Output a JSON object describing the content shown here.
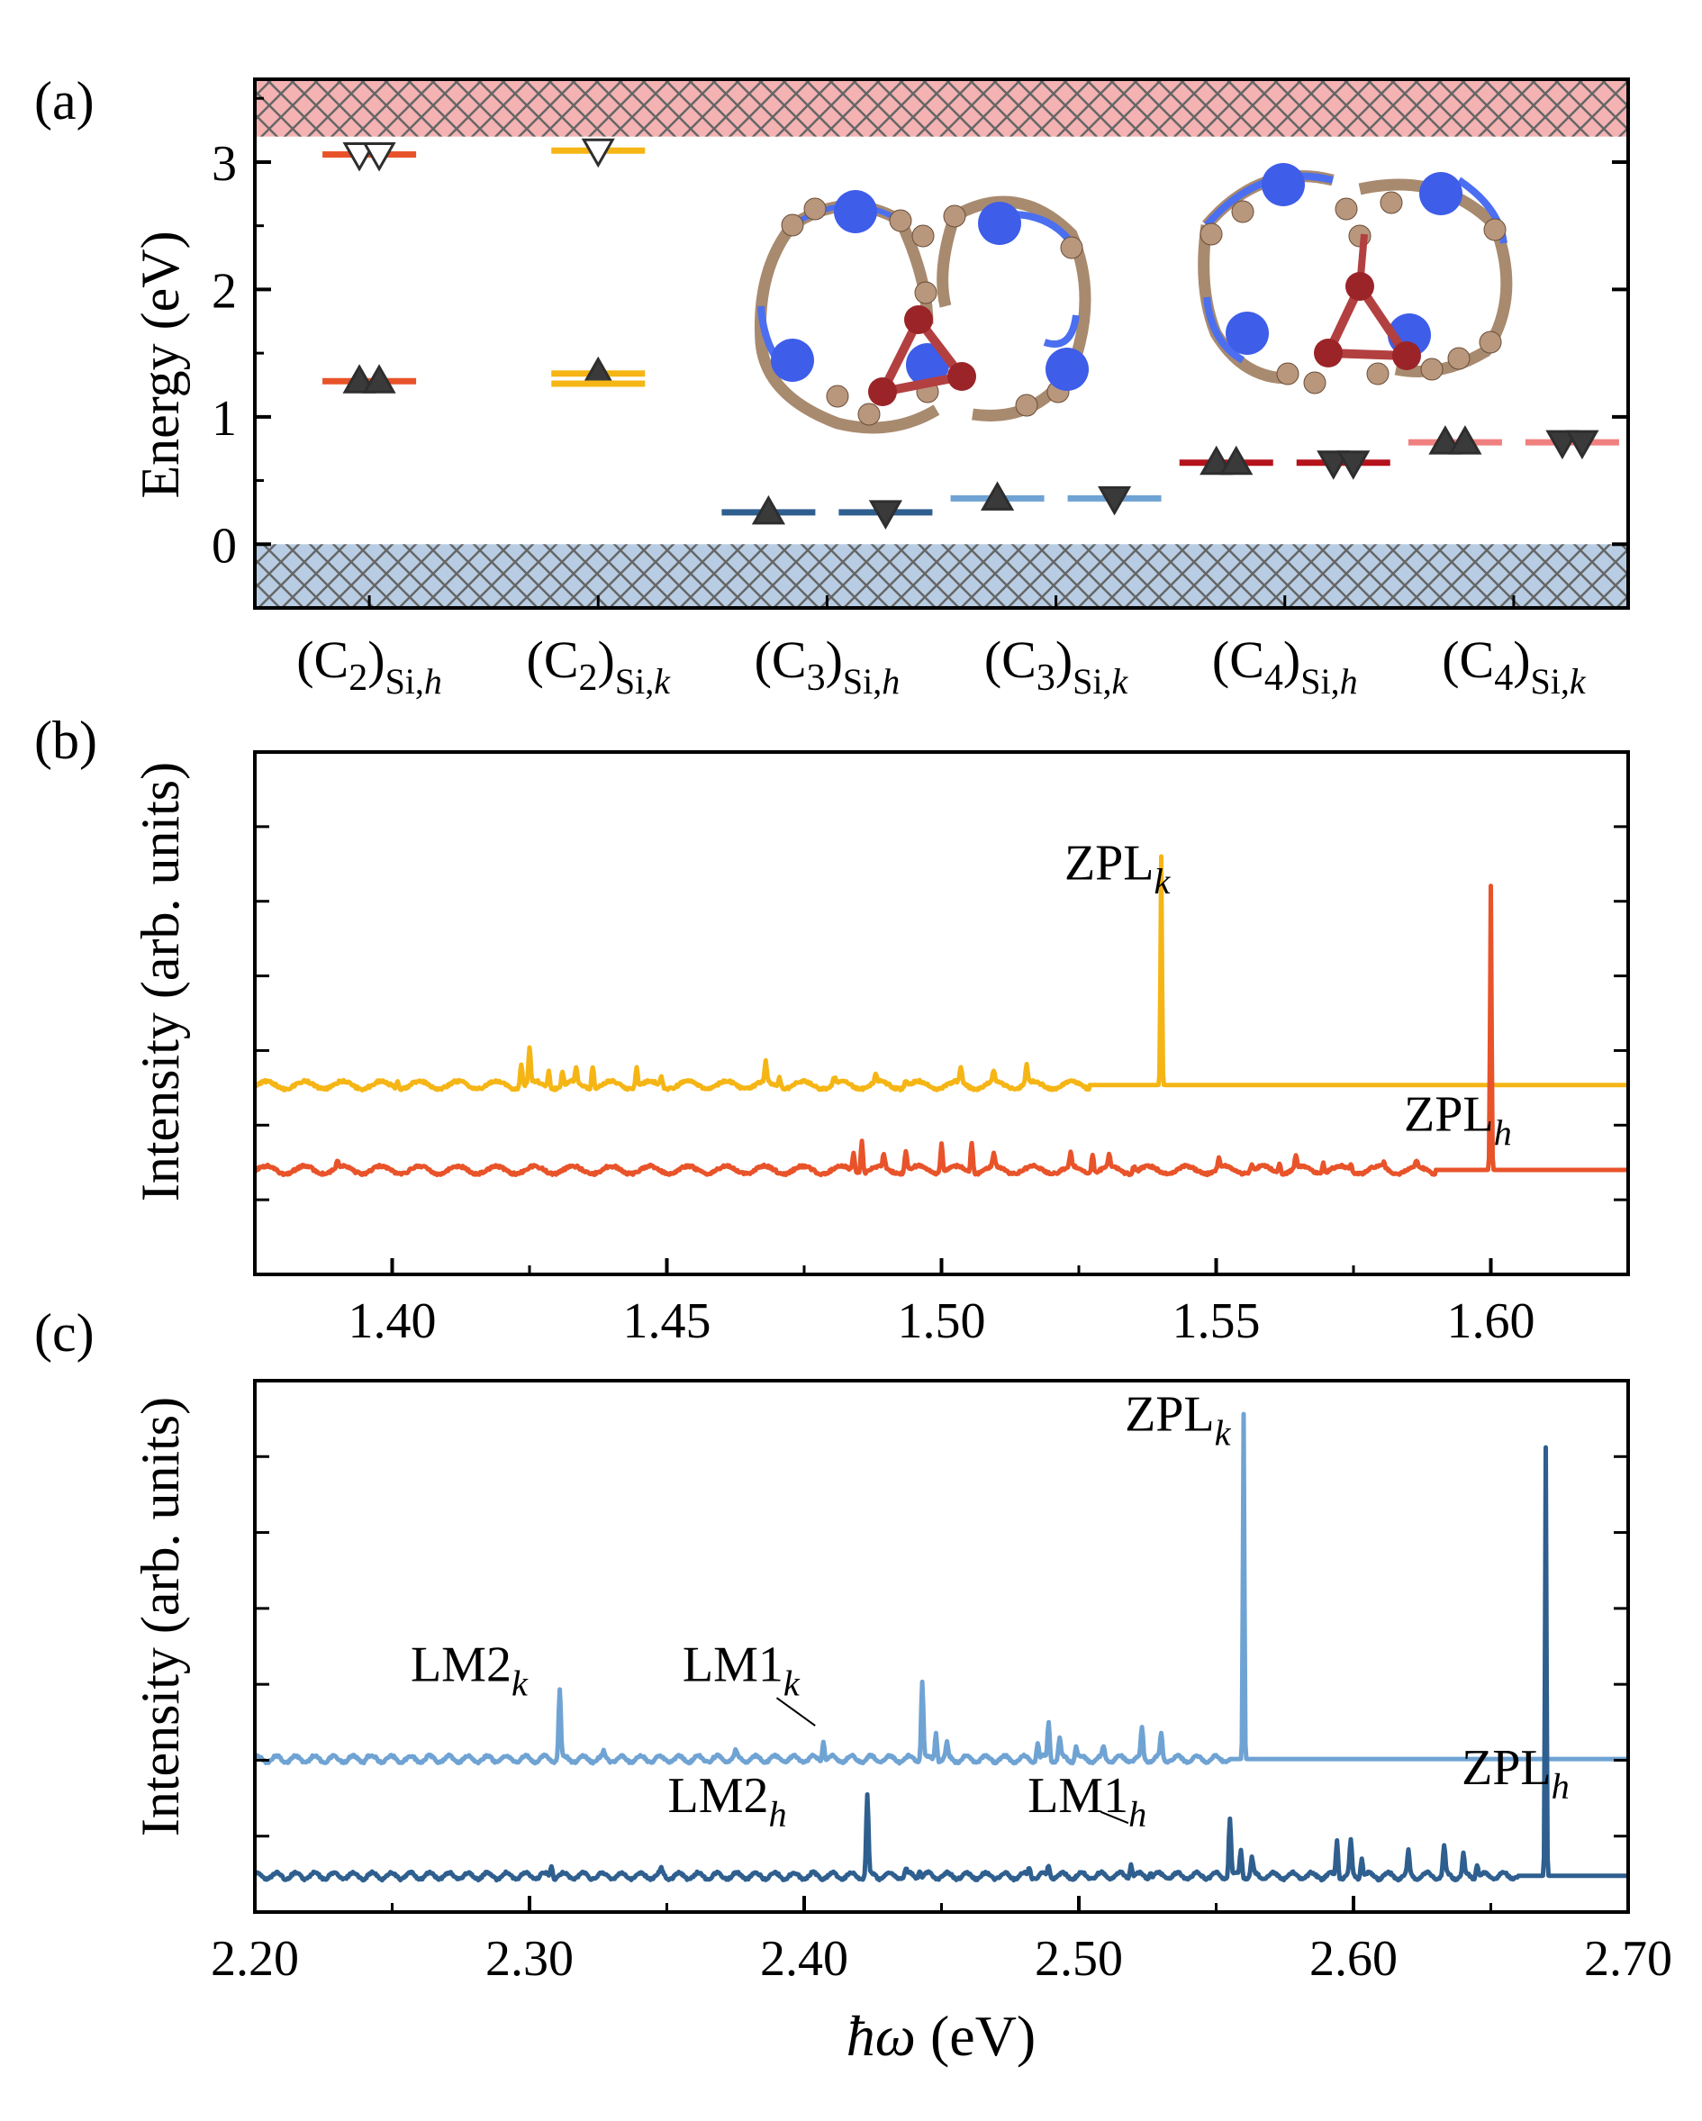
{
  "chart_data": [
    {
      "panel_label": "(a)",
      "type": "level_diagram",
      "ylabel": "Energy (eV)",
      "ylim": [
        -0.5,
        3.65
      ],
      "yticks": [
        "0",
        "1",
        "2",
        "3"
      ],
      "yticks_values": [
        0,
        1,
        2,
        3
      ],
      "bands": [
        {
          "name": "valence",
          "range": [
            -0.5,
            0.0
          ],
          "color": "#b8cde3"
        },
        {
          "name": "conduction",
          "range": [
            3.2,
            3.65
          ],
          "color": "#f4b2b2"
        }
      ],
      "categories": [
        {
          "base": "(C",
          "num": "2",
          "sub": "Si,",
          "site": "h"
        },
        {
          "base": "(C",
          "num": "2",
          "sub": "Si,",
          "site": "k"
        },
        {
          "base": "(C",
          "num": "3",
          "sub": "Si,",
          "site": "h"
        },
        {
          "base": "(C",
          "num": "3",
          "sub": "Si,",
          "site": "k"
        },
        {
          "base": "(C",
          "num": "4",
          "sub": "Si,",
          "site": "h"
        },
        {
          "base": "(C",
          "num": "4",
          "sub": "Si,",
          "site": "k"
        }
      ],
      "levels": [
        {
          "category": 0,
          "energy": 1.28,
          "color": "#e8532a",
          "markers": [
            "up",
            "up"
          ]
        },
        {
          "category": 0,
          "energy": 3.06,
          "color": "#e8532a",
          "markers": [
            "down-open",
            "down-open"
          ]
        },
        {
          "category": 1,
          "energy": 1.34,
          "color": "#f5b515",
          "markers": [
            "up"
          ]
        },
        {
          "category": 1,
          "energy": 1.26,
          "color": "#f5b515",
          "markers": []
        },
        {
          "category": 1,
          "energy": 3.09,
          "color": "#f5b515",
          "markers": [
            "down-open"
          ]
        },
        {
          "category": 2,
          "energy": 0.25,
          "color": "#2e5f8f",
          "markers": [
            "up"
          ]
        },
        {
          "category": 2,
          "energy": 0.25,
          "color": "#2e5f8f",
          "markers": [
            "down"
          ],
          "offset": "right"
        },
        {
          "category": 3,
          "energy": 0.36,
          "color": "#6fa3d3",
          "markers": [
            "up"
          ]
        },
        {
          "category": 3,
          "energy": 0.36,
          "color": "#6fa3d3",
          "markers": [
            "down"
          ],
          "offset": "right"
        },
        {
          "category": 4,
          "energy": 0.64,
          "color": "#b5121b",
          "markers": [
            "up",
            "up"
          ]
        },
        {
          "category": 4,
          "energy": 0.64,
          "color": "#b5121b",
          "markers": [
            "down",
            "down"
          ],
          "offset": "right"
        },
        {
          "category": 5,
          "energy": 0.8,
          "color": "#f08080",
          "markers": [
            "up",
            "up"
          ]
        },
        {
          "category": 5,
          "energy": 0.8,
          "color": "#f08080",
          "markers": [
            "down",
            "down"
          ],
          "offset": "right"
        }
      ]
    },
    {
      "panel_label": "(b)",
      "type": "line",
      "ylabel": "Intensity (arb. units)",
      "xlim": [
        1.375,
        1.625
      ],
      "xticks": [
        "1.40",
        "1.45",
        "1.50",
        "1.55",
        "1.60"
      ],
      "xticks_values": [
        1.4,
        1.45,
        1.5,
        1.55,
        1.6
      ],
      "series": [
        {
          "name": "k",
          "color": "#f5b515",
          "baseline": 0.58,
          "sideband_end": 1.527,
          "zpl": 1.54,
          "zpl_height": 0.7,
          "peaks": [
            [
              1.401,
              0.02
            ],
            [
              1.4235,
              0.07
            ],
            [
              1.425,
              0.11
            ],
            [
              1.4285,
              0.05
            ],
            [
              1.431,
              0.045
            ],
            [
              1.4335,
              0.04
            ],
            [
              1.4365,
              0.07
            ],
            [
              1.4445,
              0.06
            ],
            [
              1.449,
              0.03
            ],
            [
              1.468,
              0.06
            ],
            [
              1.4705,
              0.035
            ],
            [
              1.4805,
              0.02
            ],
            [
              1.488,
              0.025
            ],
            [
              1.4935,
              0.02
            ],
            [
              1.5035,
              0.045
            ],
            [
              1.5095,
              0.035
            ],
            [
              1.5155,
              0.055
            ]
          ]
        },
        {
          "name": "h",
          "color": "#e8532a",
          "baseline": 0.32,
          "sideband_end": 1.59,
          "zpl": 1.6,
          "zpl_height": 0.87,
          "peaks": [
            [
              1.39,
              0.02
            ],
            [
              1.484,
              0.06
            ],
            [
              1.4855,
              0.1
            ],
            [
              1.4895,
              0.04
            ],
            [
              1.4935,
              0.065
            ],
            [
              1.5,
              0.09
            ],
            [
              1.5055,
              0.09
            ],
            [
              1.5095,
              0.04
            ],
            [
              1.5235,
              0.04
            ],
            [
              1.5275,
              0.06
            ],
            [
              1.5305,
              0.035
            ],
            [
              1.535,
              0.02
            ],
            [
              1.5505,
              0.03
            ],
            [
              1.5565,
              0.02
            ],
            [
              1.5615,
              0.03
            ],
            [
              1.5645,
              0.04
            ],
            [
              1.5695,
              0.03
            ],
            [
              1.5745,
              0.02
            ],
            [
              1.5805,
              0.015
            ],
            [
              1.5865,
              0.015
            ]
          ]
        }
      ],
      "annotations": [
        {
          "base": "ZPL",
          "sub": "k",
          "x": 1.532,
          "y": 1.21
        },
        {
          "base": "ZPL",
          "sub": "h",
          "x": 1.594,
          "y": 0.44
        }
      ]
    },
    {
      "panel_label": "(c)",
      "type": "line",
      "ylabel": "Intensity (arb. units)",
      "xlabel_main": "ħω",
      "xlabel_unit": " (eV)",
      "xlim": [
        2.2,
        2.7
      ],
      "xticks": [
        "2.20",
        "2.30",
        "2.40",
        "2.50",
        "2.60",
        "2.70"
      ],
      "xticks_values": [
        2.2,
        2.3,
        2.4,
        2.5,
        2.6,
        2.7
      ],
      "series": [
        {
          "name": "k",
          "color": "#6fa3d3",
          "baseline": 0.54,
          "sideband_end": 2.555,
          "zpl": 2.56,
          "zpl_height": 1.24,
          "peaks": [
            [
              2.241,
              0.01
            ],
            [
              2.311,
              0.25
            ],
            [
              2.327,
              0.02
            ],
            [
              2.375,
              0.02
            ],
            [
              2.407,
              0.07
            ],
            [
              2.443,
              0.28
            ],
            [
              2.448,
              0.1
            ],
            [
              2.452,
              0.05
            ],
            [
              2.485,
              0.06
            ],
            [
              2.489,
              0.13
            ],
            [
              2.493,
              0.07
            ],
            [
              2.499,
              0.05
            ],
            [
              2.509,
              0.04
            ],
            [
              2.523,
              0.11
            ],
            [
              2.53,
              0.09
            ]
          ]
        },
        {
          "name": "h",
          "color": "#2e5f8f",
          "baseline": 0.12,
          "sideband_end": 2.66,
          "zpl": 2.67,
          "zpl_height": 1.54,
          "peaks": [
            [
              2.308,
              0.04
            ],
            [
              2.348,
              0.02
            ],
            [
              2.423,
              0.29
            ],
            [
              2.437,
              0.02
            ],
            [
              2.442,
              0.03
            ],
            [
              2.482,
              0.03
            ],
            [
              2.489,
              0.04
            ],
            [
              2.519,
              0.05
            ],
            [
              2.526,
              0.02
            ],
            [
              2.555,
              0.21
            ],
            [
              2.559,
              0.1
            ],
            [
              2.563,
              0.06
            ],
            [
              2.594,
              0.13
            ],
            [
              2.599,
              0.12
            ],
            [
              2.603,
              0.07
            ],
            [
              2.62,
              0.08
            ],
            [
              2.633,
              0.1
            ],
            [
              2.64,
              0.07
            ],
            [
              2.645,
              0.05
            ]
          ]
        }
      ],
      "annotations": [
        {
          "base": "LM2",
          "sub": "k",
          "x": 2.278,
          "y": 0.82
        },
        {
          "base": "LM1",
          "sub": "k",
          "x": 2.377,
          "y": 0.82
        },
        {
          "base": "ZPL",
          "sub": "k",
          "x": 2.536,
          "y": 1.72
        },
        {
          "base": "LM2",
          "sub": "h",
          "x": 2.372,
          "y": 0.35
        },
        {
          "base": "LM1",
          "sub": "h",
          "x": 2.503,
          "y": 0.35
        },
        {
          "base": "ZPL",
          "sub": "h",
          "x": 2.659,
          "y": 0.45
        }
      ],
      "leaders": [
        {
          "from": [
            2.39,
            0.76
          ],
          "to": [
            2.404,
            0.66
          ]
        },
        {
          "from": [
            2.508,
            0.35
          ],
          "to": [
            2.518,
            0.31
          ]
        }
      ]
    }
  ]
}
